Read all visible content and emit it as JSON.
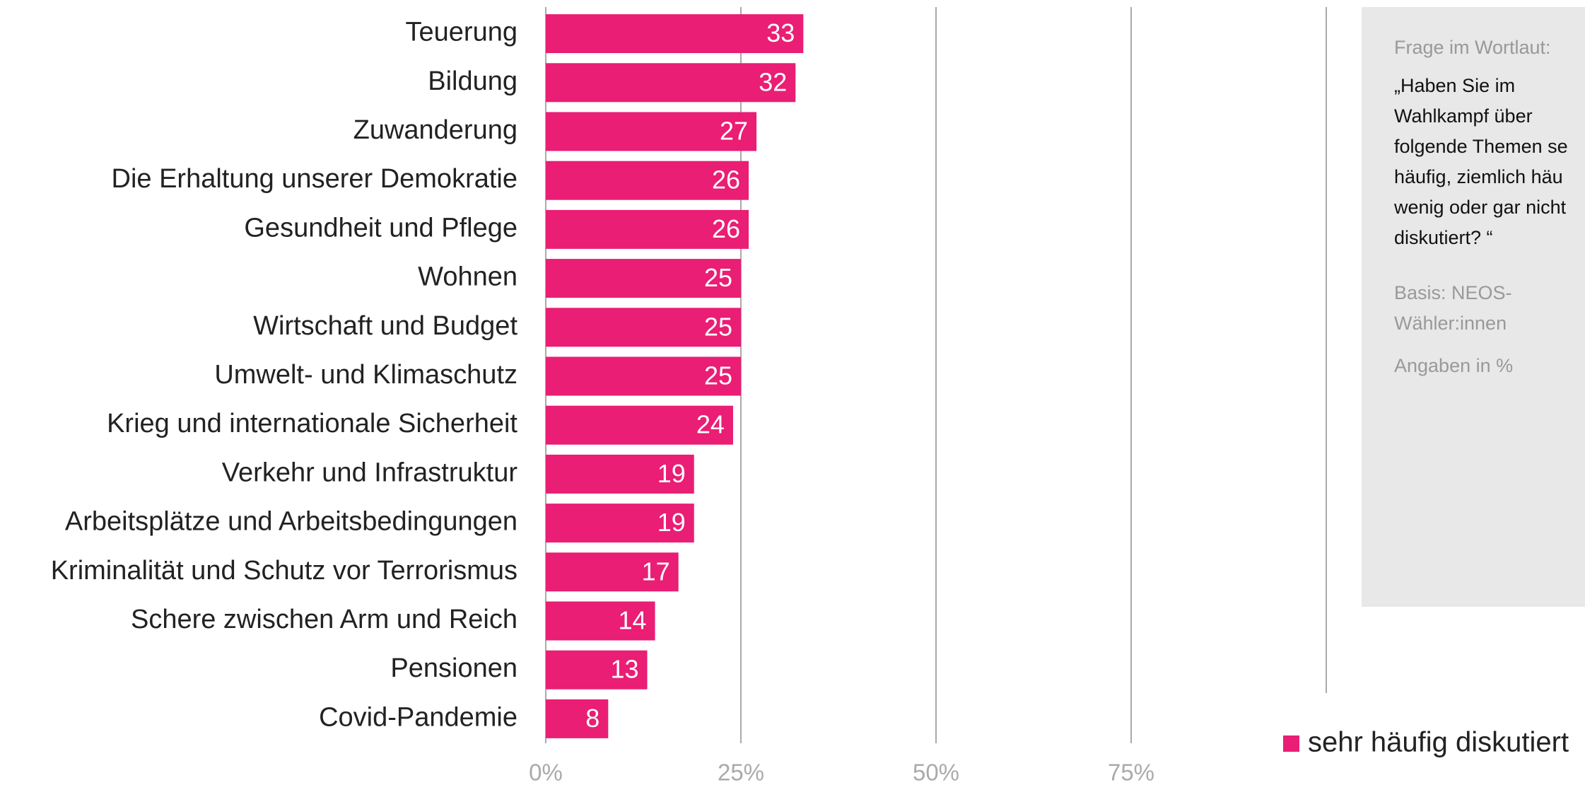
{
  "chart_data": {
    "type": "bar",
    "orientation": "horizontal",
    "categories": [
      "Teuerung",
      "Bildung",
      "Zuwanderung",
      "Die Erhaltung unserer Demokratie",
      "Gesundheit und Pflege",
      "Wohnen",
      "Wirtschaft und Budget",
      "Umwelt- und Klimaschutz",
      "Krieg und internationale Sicherheit",
      "Verkehr und Infrastruktur",
      "Arbeitsplätze und Arbeitsbedingungen",
      "Kriminalität und Schutz vor Terrorismus",
      "Schere zwischen Arm und Reich",
      "Pensionen",
      "Covid-Pandemie"
    ],
    "series": [
      {
        "name": "sehr häufig diskutiert",
        "color": "#e91e74",
        "values": [
          33,
          32,
          27,
          26,
          26,
          25,
          25,
          25,
          24,
          19,
          19,
          17,
          14,
          13,
          8
        ]
      }
    ],
    "xlim": [
      0,
      100
    ],
    "xticks": [
      {
        "value": 0,
        "label": "0%"
      },
      {
        "value": 25,
        "label": "25%"
      },
      {
        "value": 50,
        "label": "50%"
      },
      {
        "value": 75,
        "label": "75%"
      }
    ],
    "grid": true,
    "legend": "bottom-right",
    "note": {
      "heading": "Frage im Wortlaut:",
      "question_lines": [
        "„Haben Sie im",
        "Wahlkampf über",
        "folgende Themen se",
        "häufig, ziemlich häu",
        "wenig oder gar nicht",
        "diskutiert? “"
      ],
      "basis_lines": [
        "Basis: NEOS-",
        "Wähler:innen"
      ],
      "unit": "Angaben in %"
    }
  }
}
